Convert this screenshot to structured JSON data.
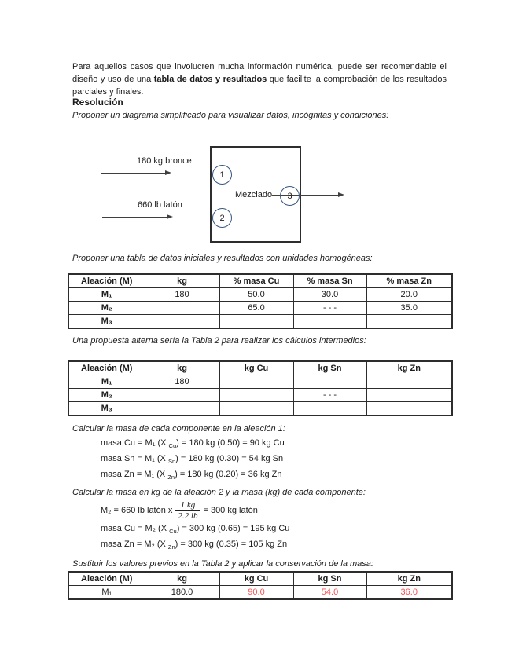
{
  "colors": {
    "highlight": "#fb4f4f",
    "circle": "#35567e"
  },
  "intro": {
    "part1": "Para aquellos casos que involucren mucha información numérica, puede ser recomendable el diseño y uso de una ",
    "bold": "tabla de datos y resultados",
    "part2": " que facilite la comprobación de los resultados parciales y finales."
  },
  "resolution_heading": "Resolución",
  "diagram_caption": "Proponer un diagrama simplificado para visualizar datos, incógnitas y condiciones:",
  "diagram": {
    "input1_label": "180 kg bronce",
    "input2_label": "660 lb latón",
    "process_label": "Mezclado",
    "node1": "1",
    "node2": "2",
    "node3": "3"
  },
  "table1_caption": "Proponer una tabla de datos iniciales y resultados con unidades homogéneas:",
  "table1": {
    "headers": [
      "Aleación (M)",
      "kg",
      "% masa Cu",
      "% masa Sn",
      "% masa Zn"
    ],
    "rows": [
      [
        "M₁",
        "180",
        "50.0",
        "30.0",
        "20.0"
      ],
      [
        "M₂",
        "",
        "65.0",
        "- - -",
        "35.0"
      ],
      [
        "M₃",
        "",
        "",
        "",
        ""
      ]
    ]
  },
  "table2_caption": "Una propuesta alterna sería la Tabla 2 para realizar los cálculos intermedios:",
  "table2": {
    "headers": [
      "Aleación (M)",
      "kg",
      "kg Cu",
      "kg Sn",
      "kg Zn"
    ],
    "rows": [
      [
        "M₁",
        "180",
        "",
        "",
        ""
      ],
      [
        "M₂",
        "",
        "",
        "- - -",
        ""
      ],
      [
        "M₃",
        "",
        "",
        "",
        ""
      ]
    ]
  },
  "calc1_caption": "Calcular la masa de cada componente en la aleación 1:",
  "calc1": [
    {
      "a": "masa Cu = M₁ (X ",
      "sub": "Cu",
      "b": ") = 180 kg (0.50) = 90 kg Cu"
    },
    {
      "a": "masa Sn = M₁ (X ",
      "sub": "Sn",
      "b": ") = 180 kg (0.30) = 54 kg Sn"
    },
    {
      "a": "masa Zn = M₁ (X ",
      "sub": "Zn",
      "b": ") = 180 kg (0.20) = 36 kg Zn"
    }
  ],
  "calc2_caption": "Calcular la masa en kg de la aleación 2 y la masa (kg) de cada componente:",
  "calc2_eq": {
    "a": "M₂ = 660 lb latón x",
    "num": "1 kg",
    "den": "2.2 lb",
    "b": "= 300 kg latón"
  },
  "calc2": [
    {
      "a": "masa Cu = M₂ (X ",
      "sub": "Cu",
      "b": ") = 300 kg (0.65) = 195 kg Cu"
    },
    {
      "a": "masa Zn = M₂ (X ",
      "sub": "Zn",
      "b": ") = 300 kg (0.35) = 105 kg Zn"
    }
  ],
  "table3_caption": "Sustituir los valores previos en la Tabla 2 y aplicar la conservación de la masa:",
  "table3": {
    "headers": [
      "Aleación (M)",
      "kg",
      "kg Cu",
      "kg Sn",
      "kg Zn"
    ],
    "rows": [
      [
        "M₁",
        "180.0",
        "90.0",
        "54.0",
        "36.0"
      ]
    ]
  }
}
